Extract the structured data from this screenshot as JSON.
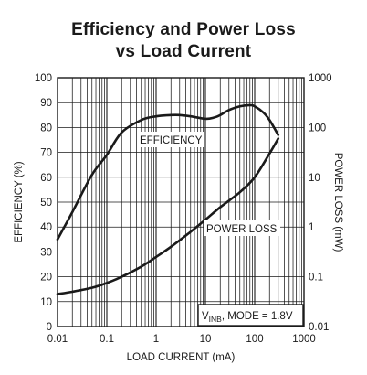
{
  "chart_data": {
    "type": "line",
    "title": [
      "Efficiency and Power Loss",
      "vs Load Current"
    ],
    "xlabel": "LOAD CURRENT (mA)",
    "ylabel": "EFFICIENCY (%)",
    "y2label": "POWER LOSS (mW)",
    "xscale": "log",
    "xlim": [
      0.01,
      1000
    ],
    "ylim": [
      0,
      100
    ],
    "y2scale": "log",
    "y2lim": [
      0.01,
      1000
    ],
    "grid": true,
    "x_ticks": [
      "0.01",
      "0.1",
      "1",
      "10",
      "100",
      "1000"
    ],
    "y_ticks": [
      "0",
      "10",
      "20",
      "30",
      "40",
      "50",
      "60",
      "70",
      "80",
      "90",
      "100"
    ],
    "y2_ticks": [
      "0.01",
      "0.1",
      "1",
      "10",
      "100",
      "1000"
    ],
    "series": [
      {
        "name": "EFFICIENCY",
        "axis": "left",
        "x": [
          0.01,
          0.02,
          0.05,
          0.1,
          0.2,
          0.5,
          1,
          2,
          3,
          5,
          10,
          15,
          20,
          30,
          50,
          80,
          100,
          150,
          200,
          300
        ],
        "y": [
          35,
          46,
          61,
          69,
          78,
          83,
          84.5,
          85,
          85,
          84.5,
          83.5,
          84,
          85,
          87,
          88.5,
          89,
          88.5,
          86,
          83,
          77
        ]
      },
      {
        "name": "POWER LOSS",
        "axis": "right",
        "x": [
          0.01,
          0.02,
          0.05,
          0.1,
          0.2,
          0.5,
          1,
          2,
          5,
          10,
          20,
          50,
          100,
          200,
          300
        ],
        "y": [
          0.045,
          0.05,
          0.06,
          0.075,
          0.1,
          0.16,
          0.25,
          0.4,
          0.8,
          1.4,
          2.5,
          5,
          10,
          30,
          60
        ]
      }
    ],
    "annotations": {
      "efficiency": "EFFICIENCY",
      "power_loss": "POWER LOSS",
      "condition_prefix": "V",
      "condition_sub": "INB",
      "condition_rest": ", MODE = 1.8V"
    }
  }
}
